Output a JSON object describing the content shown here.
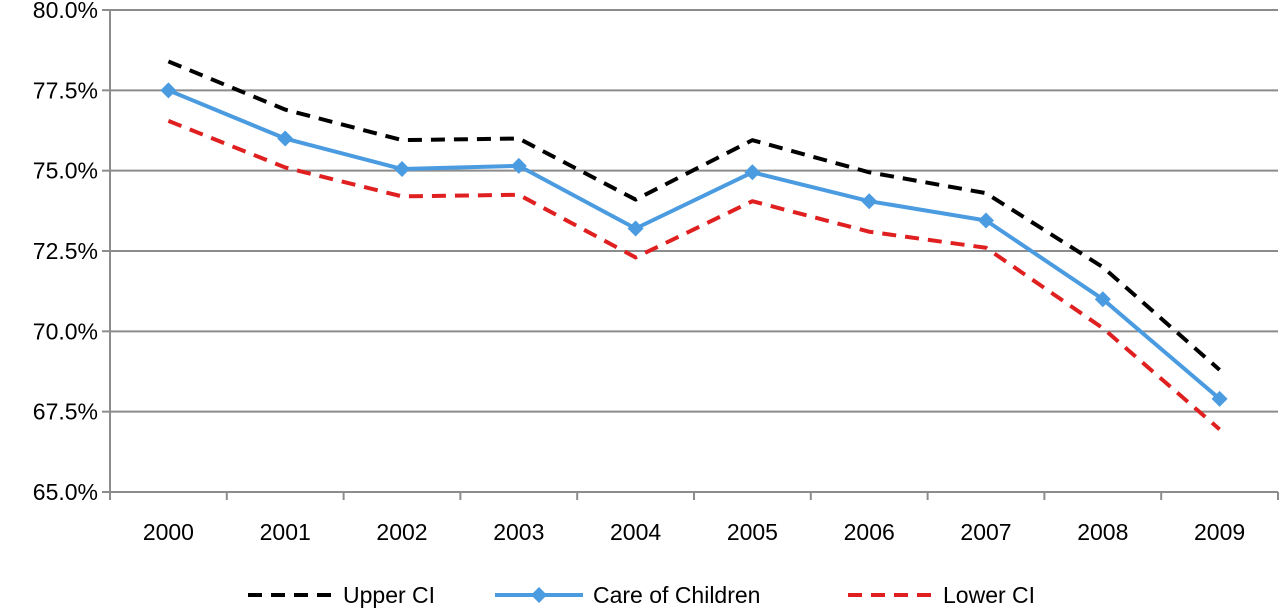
{
  "chart_data": {
    "type": "line",
    "title": "",
    "xlabel": "",
    "ylabel": "",
    "categories": [
      "2000",
      "2001",
      "2002",
      "2003",
      "2004",
      "2005",
      "2006",
      "2007",
      "2008",
      "2009"
    ],
    "y_ticks": [
      "65.0%",
      "67.5%",
      "70.0%",
      "72.5%",
      "75.0%",
      "77.5%",
      "80.0%"
    ],
    "ylim": [
      65.0,
      80.0
    ],
    "y_unit": "%",
    "grid": true,
    "legend_position": "bottom",
    "series": [
      {
        "name": "Upper CI",
        "color": "#000000",
        "style": "dashed",
        "marker": "none",
        "values": [
          78.4,
          76.9,
          75.95,
          76.0,
          74.1,
          75.95,
          74.95,
          74.3,
          72.0,
          68.8
        ]
      },
      {
        "name": "Care of Children",
        "color": "#4a9be0",
        "style": "solid",
        "marker": "diamond",
        "values": [
          77.5,
          76.0,
          75.05,
          75.15,
          73.2,
          74.95,
          74.05,
          73.45,
          71.0,
          67.9
        ]
      },
      {
        "name": "Lower CI",
        "color": "#e02020",
        "style": "dashed",
        "marker": "none",
        "values": [
          76.55,
          75.1,
          74.2,
          74.25,
          72.3,
          74.05,
          73.1,
          72.6,
          70.1,
          66.95
        ]
      }
    ]
  }
}
